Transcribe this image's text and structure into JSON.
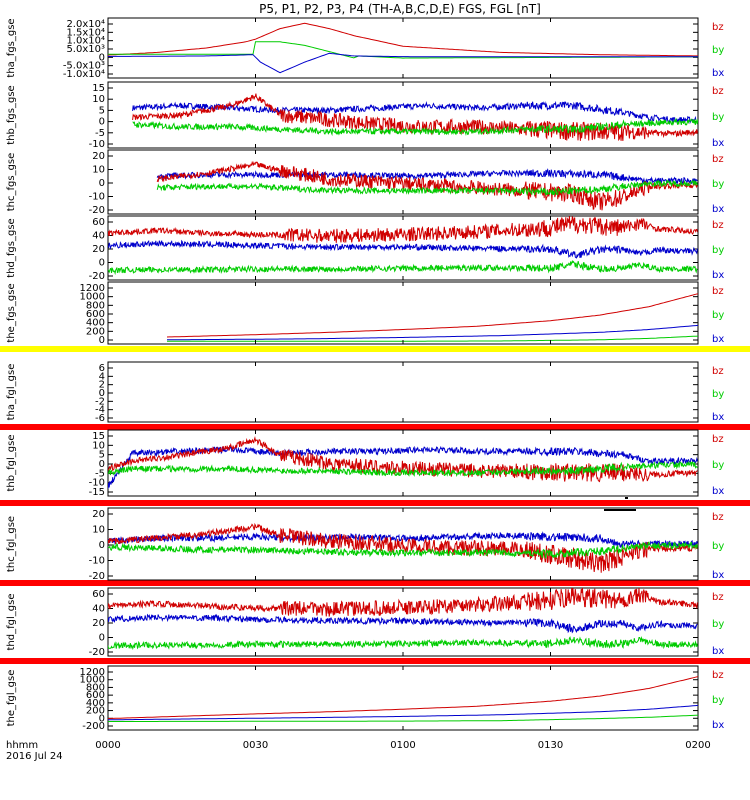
{
  "chart_data": {
    "type": "line",
    "title": "P5, P1, P2, P3, P4 (TH-A,B,C,D,E) FGS, FGL [nT]",
    "x_axis": {
      "unit_label": "hhmm",
      "date_label": "2016 Jul 24",
      "range": [
        "00:00",
        "02:00"
      ],
      "ticks": [
        "0000",
        "0030",
        "0100",
        "0130",
        "0200"
      ]
    },
    "series_colors": {
      "bz": "#d00000",
      "by": "#00cc00",
      "bx": "#0000cc"
    },
    "panels": [
      {
        "ylabel": "tha_fgs_gse",
        "ytick_labels": [
          "2.0x10⁴",
          "1.5x10⁴",
          "1.0x10⁴",
          "5.0x10³",
          "0",
          "-5.0x10³",
          "-1.0x10⁴"
        ],
        "ylim": [
          -12000,
          22000
        ],
        "legend": [
          "bz",
          "by",
          "bx"
        ],
        "series": [
          {
            "name": "bz",
            "x": [
              0,
              10,
              20,
              28,
              30,
              35,
              40,
              45,
              50,
              60,
              80,
              100,
              120
            ],
            "y": [
              1000,
              2500,
              5000,
              8500,
              10000,
              16000,
              19000,
              16000,
              12000,
              6000,
              2500,
              1200,
              500
            ]
          },
          {
            "name": "by",
            "x": [
              0,
              28,
              29.5,
              30,
              35,
              40,
              50,
              51,
              60,
              120
            ],
            "y": [
              1500,
              1500,
              1500,
              8500,
              8500,
              6500,
              -600,
              500,
              -700,
              0
            ]
          },
          {
            "name": "bx",
            "x": [
              0,
              20,
              29.5,
              31,
              35,
              40,
              45,
              50,
              60,
              120
            ],
            "y": [
              200,
              500,
              1200,
              -3000,
              -9000,
              -3000,
              2000,
              500,
              100,
              0
            ]
          }
        ]
      },
      {
        "ylabel": "thb_fgs_gse",
        "ytick_labels": [
          "15",
          "10",
          "5",
          "0",
          "-5",
          "-10"
        ],
        "ylim": [
          -12,
          16
        ],
        "legend": [
          "bz",
          "by",
          "bx"
        ],
        "series": [
          {
            "name": "bx",
            "x": [
              5,
              15,
              25,
              35,
              45,
              55,
              65,
              75,
              85,
              95,
              105,
              110,
              115,
              120
            ],
            "y": [
              5,
              6,
              5,
              4,
              4,
              5,
              6,
              5,
              6,
              6,
              3,
              1,
              0,
              0
            ]
          },
          {
            "name": "bz",
            "x": [
              5,
              15,
              25,
              30,
              35,
              45,
              55,
              65,
              75,
              85,
              95,
              105,
              115,
              120
            ],
            "y": [
              1,
              2,
              6,
              10,
              2,
              0,
              -2,
              -3,
              -3,
              -4,
              -5,
              -5,
              -6,
              -5
            ]
          },
          {
            "name": "by",
            "x": [
              5,
              15,
              25,
              35,
              45,
              55,
              65,
              75,
              85,
              95,
              105,
              115,
              120
            ],
            "y": [
              -2,
              -3,
              -3,
              -4,
              -5,
              -5,
              -5,
              -5,
              -4,
              -4,
              -2,
              -1,
              -1
            ]
          }
        ]
      },
      {
        "ylabel": "thc_fgs_gse",
        "ytick_labels": [
          "20",
          "10",
          "0",
          "-10",
          "-20"
        ],
        "ylim": [
          -22,
          22
        ],
        "legend": [
          "bz",
          "by",
          "bx"
        ],
        "series": [
          {
            "name": "bx",
            "x": [
              10,
              20,
              30,
              40,
              50,
              60,
              70,
              80,
              90,
              100,
              110,
              120
            ],
            "y": [
              4,
              5,
              5,
              5,
              5,
              4,
              5,
              6,
              6,
              5,
              1,
              1
            ]
          },
          {
            "name": "bz",
            "x": [
              10,
              20,
              30,
              35,
              45,
              55,
              65,
              75,
              85,
              95,
              100,
              105,
              110,
              120
            ],
            "y": [
              2,
              6,
              12,
              8,
              2,
              0,
              -2,
              -4,
              -6,
              -8,
              -14,
              -10,
              -3,
              -2
            ]
          },
          {
            "name": "by",
            "x": [
              10,
              20,
              30,
              40,
              50,
              60,
              70,
              80,
              90,
              100,
              110,
              120
            ],
            "y": [
              -4,
              -3,
              -3,
              -5,
              -6,
              -6,
              -6,
              -6,
              -7,
              -5,
              -1,
              -1
            ]
          }
        ]
      },
      {
        "ylabel": "thd_fgs_gse",
        "ytick_labels": [
          "60",
          "40",
          "20",
          "0",
          "-20"
        ],
        "ylim": [
          -28,
          65
        ],
        "legend": [
          "bz",
          "by",
          "bx"
        ],
        "series": [
          {
            "name": "bz",
            "x": [
              0,
              10,
              20,
              30,
              45,
              60,
              75,
              90,
              95,
              100,
              105,
              108,
              112,
              115,
              120
            ],
            "y": [
              40,
              44,
              40,
              38,
              36,
              38,
              42,
              48,
              54,
              50,
              48,
              55,
              46,
              45,
              42
            ]
          },
          {
            "name": "bx",
            "x": [
              0,
              10,
              20,
              30,
              45,
              60,
              75,
              90,
              95,
              100,
              105,
              108,
              112,
              115,
              120
            ],
            "y": [
              22,
              25,
              24,
              22,
              20,
              20,
              18,
              17,
              8,
              16,
              16,
              10,
              16,
              14,
              14
            ]
          },
          {
            "name": "by",
            "x": [
              0,
              10,
              20,
              30,
              45,
              60,
              75,
              90,
              95,
              100,
              105,
              108,
              112,
              120
            ],
            "y": [
              -14,
              -13,
              -13,
              -12,
              -12,
              -11,
              -10,
              -11,
              -5,
              -12,
              -11,
              -6,
              -12,
              -12
            ]
          }
        ]
      },
      {
        "ylabel": "the_fgs_gse",
        "ytick_labels": [
          "1200",
          "1000",
          "800",
          "600",
          "400",
          "200",
          "0"
        ],
        "ylim": [
          -80,
          1250
        ],
        "legend": [
          "bz",
          "by",
          "bx"
        ],
        "series": [
          {
            "name": "bz",
            "x": [
              12,
              30,
              45,
              60,
              75,
              90,
              100,
              110,
              115,
              120
            ],
            "y": [
              70,
              120,
              170,
              230,
              300,
              420,
              540,
              720,
              860,
              1000
            ]
          },
          {
            "name": "bx",
            "x": [
              12,
              40,
              60,
              80,
              100,
              110,
              120
            ],
            "y": [
              10,
              30,
              60,
              100,
              170,
              230,
              320
            ]
          },
          {
            "name": "by",
            "x": [
              12,
              60,
              80,
              100,
              110,
              120
            ],
            "y": [
              -20,
              -20,
              -15,
              10,
              40,
              90
            ]
          }
        ]
      },
      {
        "ylabel": "tha_fgl_gse",
        "ytick_labels": [
          "6",
          "4",
          "2",
          "0",
          "-2",
          "-4",
          "-6"
        ],
        "ylim": [
          -7,
          7
        ],
        "legend": [
          "bz",
          "by",
          "bx"
        ],
        "series": []
      },
      {
        "ylabel": "thb_fgl_gse",
        "ytick_labels": [
          "15",
          "10",
          "5",
          "0",
          "-5",
          "-10",
          "-15"
        ],
        "ylim": [
          -17,
          17
        ],
        "legend": [
          "bz",
          "by",
          "bx"
        ],
        "series": [
          {
            "name": "bx",
            "x": [
              0,
              5,
              15,
              25,
              35,
              45,
              55,
              65,
              75,
              85,
              95,
              105,
              110,
              115,
              120
            ],
            "y": [
              -12,
              5,
              6,
              7,
              5,
              6,
              6,
              7,
              6,
              6,
              6,
              4,
              1,
              1,
              1
            ]
          },
          {
            "name": "bz",
            "x": [
              0,
              5,
              15,
              25,
              30,
              35,
              45,
              55,
              65,
              75,
              85,
              95,
              105,
              110,
              120
            ],
            "y": [
              -3,
              1,
              4,
              8,
              12,
              4,
              0,
              -2,
              -3,
              -4,
              -4,
              -5,
              -5,
              -6,
              -5
            ]
          },
          {
            "name": "by",
            "x": [
              0,
              5,
              15,
              25,
              35,
              45,
              55,
              65,
              75,
              85,
              95,
              105,
              115,
              120
            ],
            "y": [
              -5,
              -3,
              -3,
              -3,
              -4,
              -4,
              -5,
              -5,
              -5,
              -4,
              -4,
              -2,
              -1,
              -1
            ]
          }
        ]
      },
      {
        "ylabel": "thc_fgl_gse",
        "ytick_labels": [
          "20",
          "10",
          "0",
          "-10",
          "-20"
        ],
        "ylim": [
          -25,
          25
        ],
        "legend": [
          "bz",
          "by",
          "bx"
        ],
        "series": [
          {
            "name": "bx",
            "x": [
              0,
              10,
              20,
              30,
              40,
              50,
              60,
              70,
              80,
              90,
              100,
              105,
              110,
              120
            ],
            "y": [
              2,
              4,
              4,
              5,
              4,
              5,
              4,
              5,
              6,
              5,
              4,
              0,
              0,
              0
            ]
          },
          {
            "name": "bz",
            "x": [
              0,
              10,
              20,
              30,
              35,
              45,
              55,
              65,
              75,
              85,
              95,
              100,
              105,
              110,
              120
            ],
            "y": [
              2,
              4,
              7,
              12,
              6,
              2,
              0,
              -2,
              -3,
              -4,
              -10,
              -14,
              -8,
              -3,
              -3
            ]
          },
          {
            "name": "by",
            "x": [
              0,
              10,
              20,
              30,
              40,
              50,
              60,
              70,
              80,
              90,
              100,
              110,
              120
            ],
            "y": [
              -2,
              -3,
              -4,
              -4,
              -5,
              -6,
              -6,
              -6,
              -6,
              -7,
              -5,
              -1,
              -1
            ]
          }
        ]
      },
      {
        "ylabel": "thd_fgl_gse",
        "ytick_labels": [
          "60",
          "40",
          "20",
          "0",
          "-20"
        ],
        "ylim": [
          -28,
          65
        ],
        "legend": [
          "bz",
          "by",
          "bx"
        ],
        "series": [
          {
            "name": "bz",
            "x": [
              0,
              10,
              20,
              30,
              45,
              60,
              75,
              90,
              95,
              100,
              105,
              108,
              112,
              115,
              120
            ],
            "y": [
              40,
              44,
              40,
              38,
              36,
              38,
              42,
              48,
              54,
              50,
              48,
              55,
              46,
              45,
              42
            ]
          },
          {
            "name": "bx",
            "x": [
              0,
              10,
              20,
              30,
              45,
              60,
              75,
              90,
              95,
              100,
              105,
              108,
              112,
              115,
              120
            ],
            "y": [
              22,
              25,
              24,
              22,
              20,
              20,
              18,
              17,
              8,
              16,
              16,
              10,
              16,
              14,
              14
            ]
          },
          {
            "name": "by",
            "x": [
              0,
              10,
              20,
              30,
              45,
              60,
              75,
              90,
              95,
              100,
              105,
              108,
              112,
              120
            ],
            "y": [
              -14,
              -13,
              -13,
              -12,
              -12,
              -11,
              -10,
              -11,
              -5,
              -12,
              -11,
              -6,
              -12,
              -12
            ]
          }
        ]
      },
      {
        "ylabel": "the_fgl_gse",
        "ytick_labels": [
          "1200",
          "1000",
          "800",
          "600",
          "400",
          "200",
          "0",
          "-200"
        ],
        "ylim": [
          -260,
          1250
        ],
        "legend": [
          "bz",
          "by",
          "bx"
        ],
        "series": [
          {
            "name": "bz",
            "x": [
              0,
              30,
              45,
              60,
              75,
              90,
              100,
              110,
              115,
              120
            ],
            "y": [
              10,
              120,
              170,
              230,
              300,
              420,
              540,
              720,
              860,
              1000
            ]
          },
          {
            "name": "bx",
            "x": [
              0,
              40,
              60,
              80,
              100,
              110,
              120
            ],
            "y": [
              -20,
              30,
              60,
              100,
              170,
              230,
              320
            ]
          },
          {
            "name": "by",
            "x": [
              0,
              60,
              80,
              100,
              110,
              120
            ],
            "y": [
              -60,
              -50,
              -40,
              10,
              40,
              90
            ]
          }
        ]
      }
    ]
  }
}
